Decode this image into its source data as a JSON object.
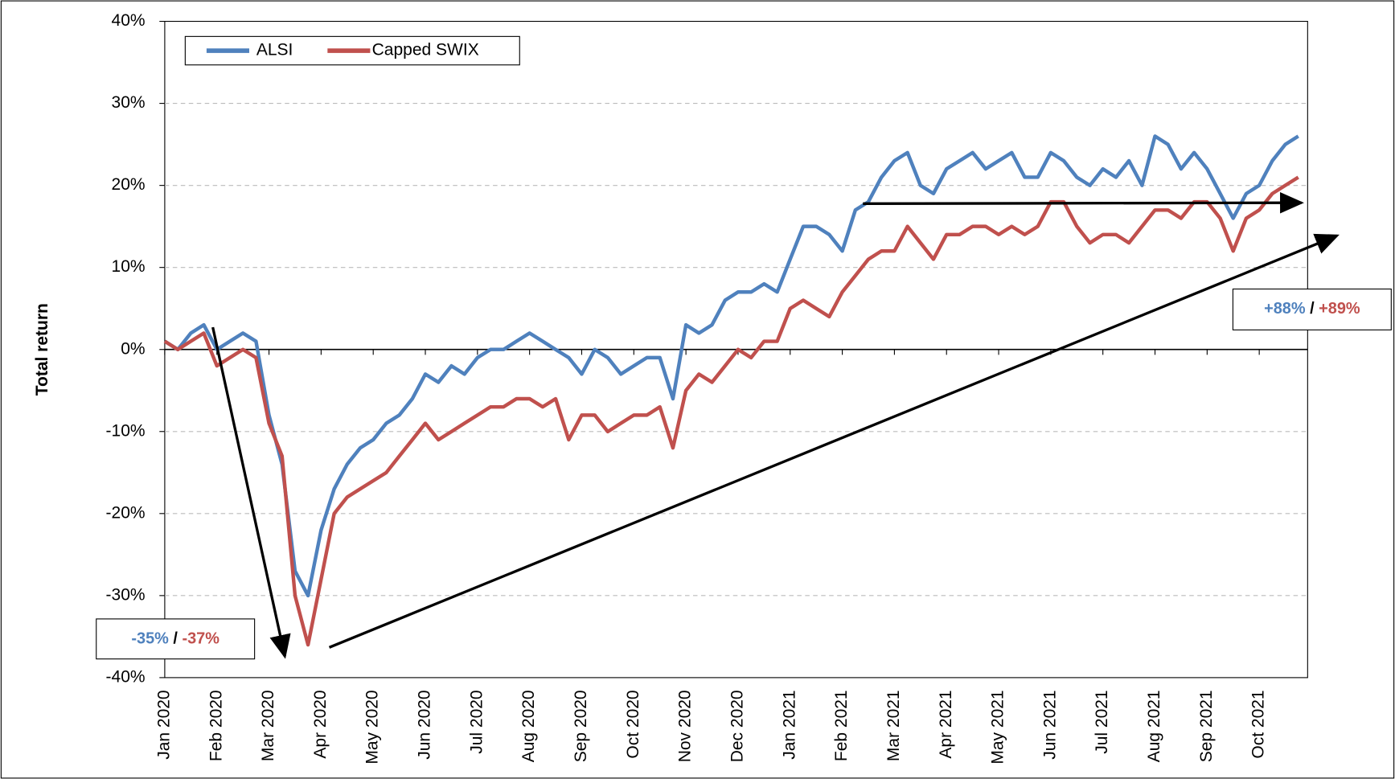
{
  "chart_data": {
    "type": "line",
    "y_label": "Total return",
    "categories": [
      "Jan 2020",
      null,
      null,
      null,
      "Feb 2020",
      null,
      null,
      null,
      "Mar 2020",
      null,
      null,
      null,
      "Apr 2020",
      null,
      null,
      null,
      "May 2020",
      null,
      null,
      null,
      "Jun 2020",
      null,
      null,
      null,
      "Jul 2020",
      null,
      null,
      null,
      "Aug 2020",
      null,
      null,
      null,
      "Sep 2020",
      null,
      null,
      null,
      "Oct 2020",
      null,
      null,
      null,
      "Nov 2020",
      null,
      null,
      null,
      "Dec 2020",
      null,
      null,
      null,
      "Jan 2021",
      null,
      null,
      null,
      "Feb 2021",
      null,
      null,
      null,
      "Mar 2021",
      null,
      null,
      null,
      "Apr 2021",
      null,
      null,
      null,
      "May 2021",
      null,
      null,
      null,
      "Jun 2021",
      null,
      null,
      null,
      "Jul 2021",
      null,
      null,
      null,
      "Aug 2021",
      null,
      null,
      null,
      "Sep 2021",
      null,
      null,
      null,
      "Oct 2021",
      null,
      null,
      null
    ],
    "series": [
      {
        "name": "ALSI",
        "color": "#4f81bd",
        "values": [
          1,
          0,
          2,
          3,
          0,
          1,
          2,
          1,
          -8,
          -14,
          -27,
          -30,
          -22,
          -17,
          -14,
          -12,
          -11,
          -9,
          -8,
          -6,
          -3,
          -4,
          -2,
          -3,
          -1,
          0,
          0,
          1,
          2,
          1,
          0,
          -1,
          -3,
          0,
          -1,
          -3,
          -2,
          -1,
          -1,
          -6,
          3,
          2,
          3,
          6,
          7,
          7,
          8,
          7,
          11,
          15,
          15,
          14,
          12,
          17,
          18,
          21,
          23,
          24,
          20,
          19,
          22,
          23,
          24,
          22,
          23,
          24,
          21,
          21,
          24,
          23,
          21,
          20,
          22,
          21,
          23,
          20,
          26,
          25,
          22,
          24,
          22,
          19,
          16,
          19,
          20,
          23,
          25,
          26
        ]
      },
      {
        "name": "Capped SWIX",
        "color": "#c0504d",
        "values": [
          1,
          0,
          1,
          2,
          -2,
          -1,
          0,
          -1,
          -9,
          -13,
          -30,
          -36,
          -28,
          -20,
          -18,
          -17,
          -16,
          -15,
          -13,
          -11,
          -9,
          -11,
          -10,
          -9,
          -8,
          -7,
          -7,
          -6,
          -6,
          -7,
          -6,
          -11,
          -8,
          -8,
          -10,
          -9,
          -8,
          -8,
          -7,
          -12,
          -5,
          -3,
          -4,
          -2,
          0,
          -1,
          1,
          1,
          5,
          6,
          5,
          4,
          7,
          9,
          11,
          12,
          12,
          15,
          13,
          11,
          14,
          14,
          15,
          15,
          14,
          15,
          14,
          15,
          18,
          18,
          15,
          13,
          14,
          14,
          13,
          15,
          17,
          17,
          16,
          18,
          18,
          16,
          12,
          16,
          17,
          19,
          20,
          21
        ]
      }
    ],
    "ylim": [
      -40,
      40
    ],
    "yticks": [
      {
        "value": -40,
        "label": "-40%"
      },
      {
        "value": -30,
        "label": "-30%"
      },
      {
        "value": -20,
        "label": "-20%"
      },
      {
        "value": -10,
        "label": "-10%"
      },
      {
        "value": 0,
        "label": "0%"
      },
      {
        "value": 10,
        "label": "10%"
      },
      {
        "value": 20,
        "label": "20%"
      },
      {
        "value": 30,
        "label": "30%"
      },
      {
        "value": 40,
        "label": "40%"
      }
    ],
    "grid": true,
    "legend": "top-left",
    "annotations": [
      [
        "-35%",
        "/",
        "-37%"
      ],
      [
        "+88%",
        "/",
        "+89%"
      ]
    ]
  }
}
